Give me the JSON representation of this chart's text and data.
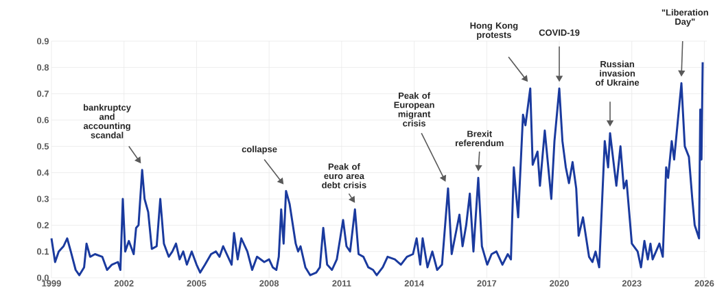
{
  "chart_data": {
    "type": "line",
    "color": "#1a3a9e",
    "grid": true,
    "marker": "none",
    "line_style": "solid",
    "xlim": [
      1999,
      2026.1
    ],
    "xticks": [
      1999,
      2002,
      2005,
      2008,
      2011,
      2014,
      2017,
      2020,
      2023,
      2026
    ],
    "ylim": [
      0,
      0.9
    ],
    "yticks": [
      {
        "value": 0,
        "label": "0.0"
      },
      0.1,
      0.2,
      0.3,
      0.4,
      0.5,
      0.6,
      0.7,
      0.8,
      0.9
    ],
    "x": [
      1999.0,
      1999.15,
      1999.3,
      1999.5,
      1999.65,
      1999.8,
      2000.0,
      2000.15,
      2000.35,
      2000.45,
      2000.6,
      2000.8,
      2001.1,
      2001.3,
      2001.5,
      2001.75,
      2001.85,
      2001.95,
      2002.05,
      2002.2,
      2002.4,
      2002.5,
      2002.6,
      2002.75,
      2002.85,
      2003.0,
      2003.15,
      2003.35,
      2003.5,
      2003.65,
      2003.85,
      2004.0,
      2004.15,
      2004.3,
      2004.45,
      2004.6,
      2004.8,
      2005.0,
      2005.15,
      2005.35,
      2005.6,
      2005.8,
      2005.95,
      2006.1,
      2006.3,
      2006.45,
      2006.55,
      2006.7,
      2006.85,
      2007.1,
      2007.3,
      2007.5,
      2007.8,
      2008.0,
      2008.15,
      2008.3,
      2008.4,
      2008.5,
      2008.6,
      2008.7,
      2008.85,
      2009.1,
      2009.2,
      2009.3,
      2009.5,
      2009.7,
      2009.95,
      2010.1,
      2010.24,
      2010.4,
      2010.6,
      2010.8,
      2011.06,
      2011.2,
      2011.35,
      2011.55,
      2011.7,
      2011.9,
      2012.1,
      2012.3,
      2012.45,
      2012.7,
      2012.9,
      2013.2,
      2013.45,
      2013.7,
      2013.95,
      2014.1,
      2014.25,
      2014.35,
      2014.55,
      2014.75,
      2014.95,
      2015.15,
      2015.4,
      2015.55,
      2015.87,
      2016.0,
      2016.15,
      2016.3,
      2016.45,
      2016.65,
      2016.8,
      2017.02,
      2017.2,
      2017.4,
      2017.65,
      2017.87,
      2018.0,
      2018.12,
      2018.3,
      2018.5,
      2018.6,
      2018.8,
      2018.9,
      2019.1,
      2019.2,
      2019.4,
      2019.67,
      2019.8,
      2020.0,
      2020.13,
      2020.27,
      2020.4,
      2020.55,
      2020.7,
      2020.8,
      2020.98,
      2021.23,
      2021.37,
      2021.5,
      2021.65,
      2021.88,
      2022.02,
      2022.1,
      2022.36,
      2022.53,
      2022.67,
      2022.78,
      2023.0,
      2023.24,
      2023.38,
      2023.52,
      2023.66,
      2023.77,
      2023.86,
      2024.14,
      2024.28,
      2024.42,
      2024.5,
      2024.65,
      2024.75,
      2025.05,
      2025.19,
      2025.36,
      2025.5,
      2025.6,
      2025.78,
      2025.83,
      2025.88,
      2025.93
    ],
    "values": [
      0.15,
      0.06,
      0.1,
      0.12,
      0.15,
      0.1,
      0.03,
      0.01,
      0.04,
      0.13,
      0.08,
      0.09,
      0.08,
      0.03,
      0.05,
      0.06,
      0.03,
      0.3,
      0.1,
      0.14,
      0.09,
      0.19,
      0.2,
      0.41,
      0.3,
      0.25,
      0.11,
      0.12,
      0.3,
      0.13,
      0.08,
      0.1,
      0.13,
      0.07,
      0.1,
      0.05,
      0.1,
      0.05,
      0.02,
      0.05,
      0.09,
      0.1,
      0.08,
      0.12,
      0.08,
      0.05,
      0.17,
      0.07,
      0.15,
      0.1,
      0.03,
      0.08,
      0.06,
      0.07,
      0.04,
      0.03,
      0.08,
      0.26,
      0.13,
      0.33,
      0.28,
      0.13,
      0.1,
      0.12,
      0.04,
      0.01,
      0.02,
      0.04,
      0.19,
      0.05,
      0.03,
      0.07,
      0.22,
      0.12,
      0.1,
      0.26,
      0.09,
      0.08,
      0.04,
      0.03,
      0.01,
      0.04,
      0.08,
      0.07,
      0.05,
      0.08,
      0.09,
      0.15,
      0.05,
      0.15,
      0.04,
      0.1,
      0.03,
      0.05,
      0.34,
      0.09,
      0.24,
      0.12,
      0.2,
      0.32,
      0.1,
      0.38,
      0.12,
      0.05,
      0.09,
      0.1,
      0.05,
      0.09,
      0.07,
      0.42,
      0.23,
      0.62,
      0.58,
      0.72,
      0.43,
      0.48,
      0.35,
      0.56,
      0.3,
      0.52,
      0.72,
      0.52,
      0.42,
      0.36,
      0.44,
      0.34,
      0.16,
      0.23,
      0.08,
      0.06,
      0.1,
      0.04,
      0.52,
      0.42,
      0.55,
      0.35,
      0.5,
      0.34,
      0.37,
      0.13,
      0.1,
      0.04,
      0.14,
      0.07,
      0.13,
      0.07,
      0.13,
      0.08,
      0.42,
      0.38,
      0.52,
      0.45,
      0.74,
      0.5,
      0.46,
      0.3,
      0.2,
      0.15,
      0.64,
      0.45,
      0.82
    ],
    "annotations": [
      "bankruptcy and accounting scandal",
      "collapse",
      "Peak of euro area debt crisis",
      "Peak of European migrant crisis",
      "Brexit referendum",
      "Hong Kong protests",
      "COVID-19",
      "Russian invasion of Ukraine",
      "\"Liberation Day\""
    ]
  }
}
